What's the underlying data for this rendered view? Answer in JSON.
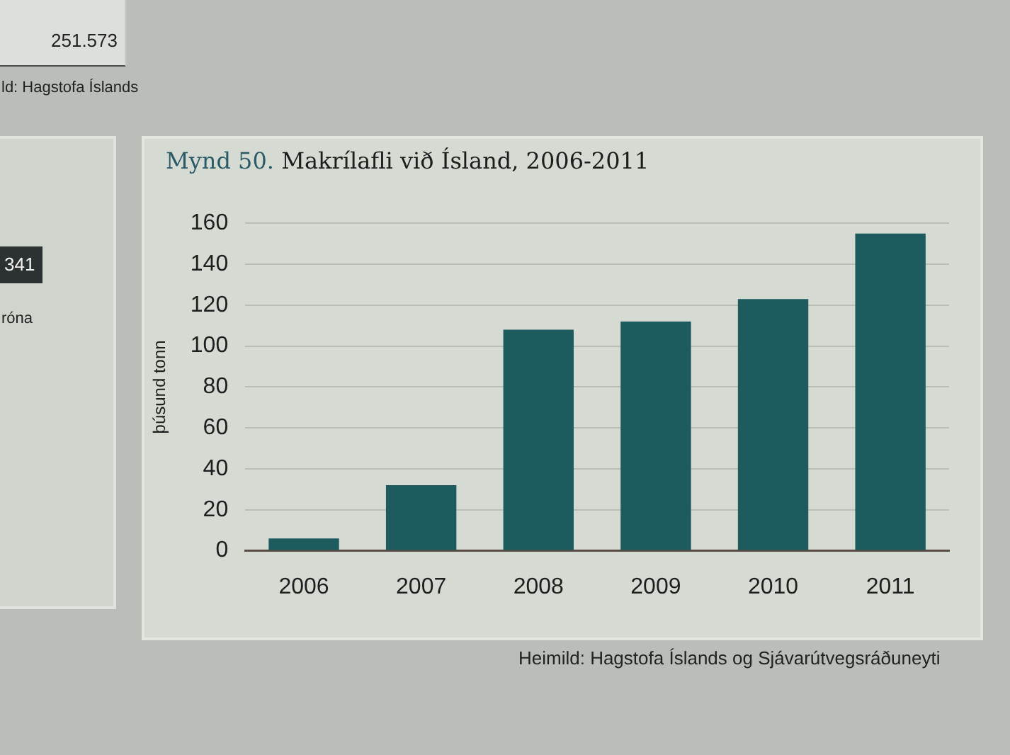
{
  "chart_data": {
    "type": "bar",
    "title": "Mynd 50. Makrílafli við Ísland, 2006-2011",
    "ylabel": "þúsund tonn",
    "categories": [
      "2006",
      "2007",
      "2008",
      "2009",
      "2010",
      "2011"
    ],
    "values": [
      6,
      32,
      108,
      112,
      123,
      155
    ],
    "color": "#1d5b5f",
    "ylim": [
      0,
      160
    ],
    "yticks": [
      0,
      20,
      40,
      60,
      80,
      100,
      120,
      140,
      160
    ],
    "grid": "y",
    "annotations": [
      "Heimild: Hagstofa Íslands og Sjávarútvegsráðuneyti",
      "251.573",
      "ld: Hagstofa Íslands",
      "341",
      "róna"
    ]
  }
}
